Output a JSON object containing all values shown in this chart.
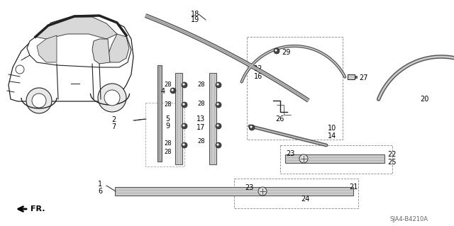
{
  "bg_color": "#ffffff",
  "diagram_code": "SJA4-B4210A",
  "line_color": "#222222",
  "label_color": "#000000",
  "gray_color": "#888888",
  "figsize": [
    6.4,
    3.19
  ],
  "dpi": 100
}
